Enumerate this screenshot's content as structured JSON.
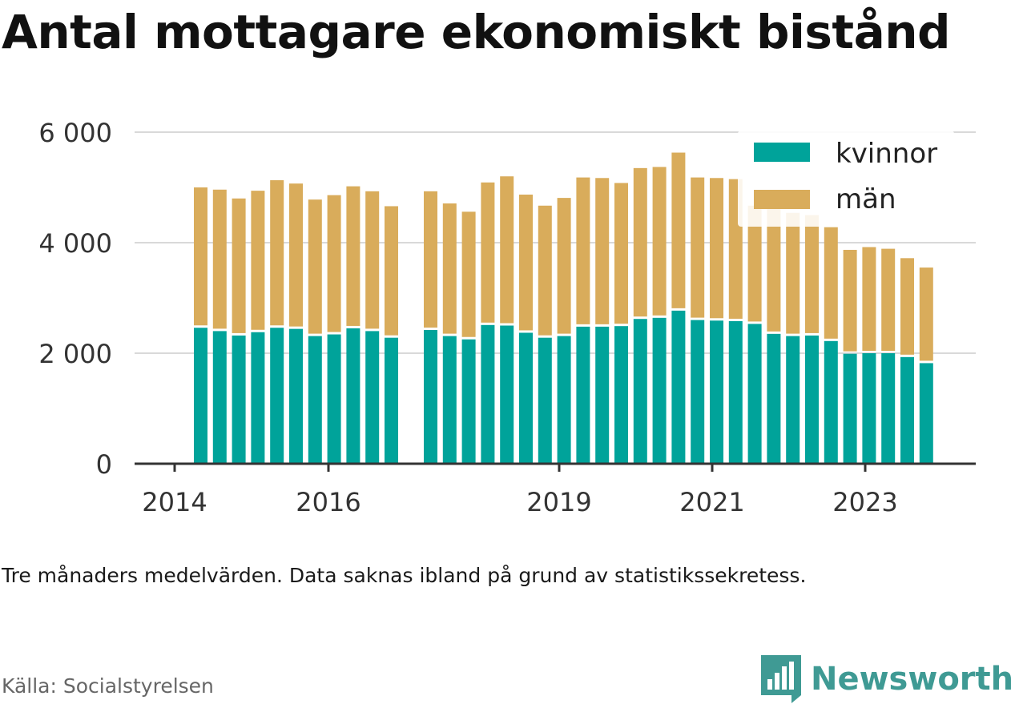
{
  "title": "Antal mottagare ekonomiskt bistånd",
  "note": "Tre månaders medelvärden. Data saknas ibland på grund av statistikssekretess.",
  "source": "Källa: Socialstyrelsen",
  "brand": "Newsworthy",
  "colors": {
    "kvinnor": "#00a39a",
    "man": "#d9ac5b",
    "grid": "#d9d9d9",
    "axis": "#333333"
  },
  "chart_data": {
    "type": "bar",
    "stacked": true,
    "x_tick_labels": [
      "2014",
      "2016",
      "2019",
      "2021",
      "2023"
    ],
    "y_ticks": [
      "0",
      "2 000",
      "4 000",
      "6 000"
    ],
    "ylim": [
      0,
      6000
    ],
    "grid": true,
    "legend_position": "top-right",
    "series": [
      {
        "name": "kvinnor",
        "values": [
          2460,
          2400,
          2320,
          2380,
          2460,
          2440,
          2310,
          2340,
          2450,
          2400,
          2280,
          2420,
          2310,
          2250,
          2510,
          2500,
          2370,
          2280,
          2310,
          2480,
          2480,
          2490,
          2620,
          2640,
          2770,
          2600,
          2590,
          2580,
          2530,
          2350,
          2310,
          2320,
          2220,
          1990,
          2000,
          2000,
          1930,
          1820
        ]
      },
      {
        "name": "män",
        "values": [
          2540,
          2560,
          2480,
          2560,
          2670,
          2630,
          2470,
          2520,
          2570,
          2530,
          2380,
          2510,
          2400,
          2310,
          2580,
          2700,
          2500,
          2390,
          2500,
          2700,
          2690,
          2590,
          2730,
          2730,
          2860,
          2580,
          2580,
          2570,
          2140,
          2270,
          2230,
          2180,
          2060,
          1880,
          1920,
          1890,
          1790,
          1730
        ]
      }
    ]
  }
}
